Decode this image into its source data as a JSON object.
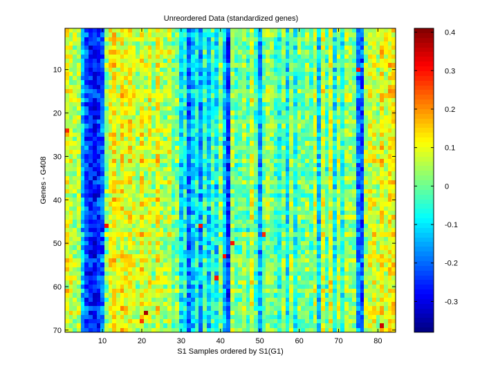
{
  "chart_data": {
    "type": "heatmap",
    "title": "Unreordered Data (standardized genes)",
    "xlabel": "S1 Samples ordered by S1(G1)",
    "ylabel": "Genes - G408",
    "x_range": [
      0.5,
      84.5
    ],
    "y_range": [
      0.5,
      70.5
    ],
    "n_cols": 84,
    "n_rows": 70,
    "x_ticks": [
      10,
      20,
      30,
      40,
      50,
      60,
      70,
      80
    ],
    "y_ticks": [
      10,
      20,
      30,
      40,
      50,
      60,
      70
    ],
    "y_reversed": true,
    "colormap": "jet",
    "color_range": [
      -0.38,
      0.41
    ],
    "colorbar_ticks": [
      -0.3,
      -0.2,
      -0.1,
      0,
      0.1,
      0.2,
      0.3,
      0.4
    ],
    "colorbar_tick_labels": [
      "-0.3",
      "-0.2",
      "-0.1",
      "0",
      "0.1",
      "0.2",
      "0.3",
      "0.4"
    ],
    "column_profile": [
      0.1,
      0.08,
      0.05,
      0.06,
      -0.12,
      -0.22,
      -0.26,
      -0.27,
      -0.25,
      -0.2,
      0.02,
      0.1,
      0.12,
      0.08,
      0.13,
      0.1,
      0.11,
      0.08,
      0.05,
      0.12,
      0.06,
      0.1,
      0.04,
      0.12,
      0.06,
      0.03,
      0.08,
      0.0,
      0.02,
      -0.1,
      -0.05,
      -0.2,
      -0.12,
      -0.06,
      -0.16,
      -0.04,
      -0.13,
      -0.02,
      -0.1,
      0.02,
      -0.12,
      -0.24,
      0.05,
      -0.02,
      0.0,
      0.03,
      -0.03,
      0.08,
      -0.02,
      -0.15,
      0.0,
      0.04,
      0.02,
      -0.02,
      -0.06,
      0.02,
      -0.1,
      0.05,
      -0.06,
      0.02,
      0.0,
      0.03,
      -0.02,
      0.06,
      -0.12,
      0.08,
      -0.03,
      0.1,
      -0.08,
      0.06,
      -0.06,
      0.05,
      0.03,
      0.02,
      -0.18,
      -0.22,
      0.05,
      0.08,
      0.1,
      0.06,
      0.12,
      0.08,
      0.13,
      0.11
    ],
    "notable_cells": [
      {
        "x": 21,
        "y": 66,
        "value": 0.38
      },
      {
        "x": 81,
        "y": 69,
        "value": 0.35
      },
      {
        "x": 11,
        "y": 46,
        "value": 0.3
      },
      {
        "x": 35,
        "y": 46,
        "value": 0.3
      },
      {
        "x": 51,
        "y": 48,
        "value": 0.28
      },
      {
        "x": 39,
        "y": 58,
        "value": 0.3
      },
      {
        "x": 41,
        "y": 53,
        "value": 0.3
      },
      {
        "x": 43,
        "y": 50,
        "value": 0.3
      },
      {
        "x": 75,
        "y": 10,
        "value": 0.3
      },
      {
        "x": 1,
        "y": 24,
        "value": 0.28
      },
      {
        "x": 20,
        "y": 68,
        "value": 0.27
      }
    ]
  }
}
